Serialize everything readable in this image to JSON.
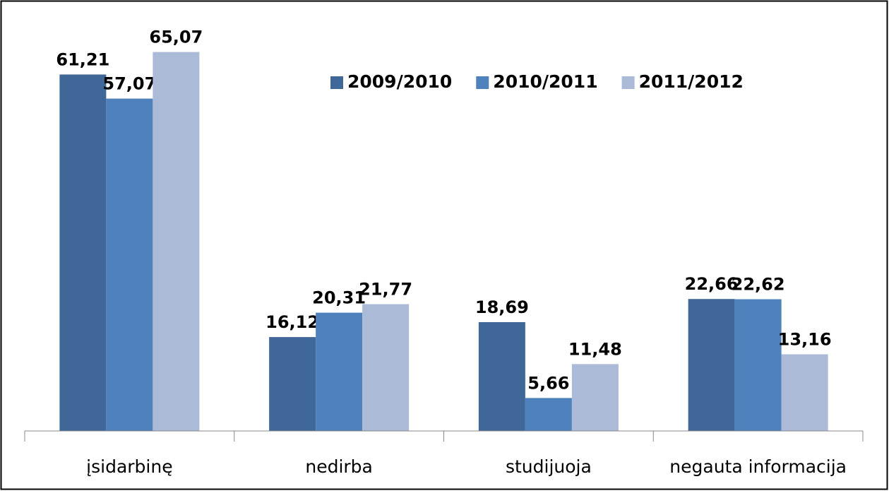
{
  "chart_data": {
    "type": "bar",
    "categories": [
      "įsidarbinę",
      "nedirba",
      "studijuoja",
      "negauta informacija"
    ],
    "series": [
      {
        "name": "2009/2010",
        "color": "#3f6899",
        "values": [
          61.21,
          16.12,
          18.69,
          22.66
        ],
        "value_labels": [
          "61,21",
          "16,12",
          "18,69",
          "22,66"
        ]
      },
      {
        "name": "2010/2011",
        "color": "#4f81bd",
        "values": [
          57.07,
          20.31,
          5.66,
          22.62
        ],
        "value_labels": [
          "57,07",
          "20,31",
          "5,66",
          "22,62"
        ]
      },
      {
        "name": "2011/2012",
        "color": "#aabad7",
        "values": [
          65.07,
          21.77,
          11.48,
          13.16
        ],
        "value_labels": [
          "65,07",
          "21,77",
          "11,48",
          "13,16"
        ]
      }
    ],
    "ylim": [
      0,
      70
    ],
    "legend": "top-right"
  }
}
